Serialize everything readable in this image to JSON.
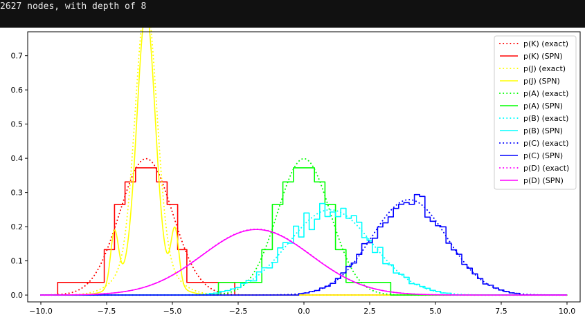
{
  "console": {
    "output_line": "2627 nodes, with depth of 8"
  },
  "chart_data": {
    "type": "line",
    "title": "",
    "xlabel": "",
    "ylabel": "",
    "xlim": [
      -10.5,
      10.5
    ],
    "ylim": [
      -0.02,
      0.77
    ],
    "xticks": [
      -10.0,
      -7.5,
      -5.0,
      -2.5,
      0.0,
      2.5,
      5.0,
      7.5,
      10.0
    ],
    "xtick_labels": [
      "−10.0",
      "−7.5",
      "−5.0",
      "−2.5",
      "0.0",
      "2.5",
      "5.0",
      "7.5",
      "10.0"
    ],
    "yticks": [
      0.0,
      0.1,
      0.2,
      0.3,
      0.4,
      0.5,
      0.6,
      0.7
    ],
    "ytick_labels": [
      "0.0",
      "0.1",
      "0.2",
      "0.3",
      "0.4",
      "0.5",
      "0.6",
      "0.7"
    ],
    "grid": false,
    "legend_position": "upper right",
    "x_range": [
      -10,
      10
    ],
    "series": [
      {
        "name": "p(K) (exact)",
        "color": "#ff0000",
        "style": "dotted",
        "kind": "gaussian",
        "mu": -6,
        "sigma": 1.0,
        "scale": 1.0
      },
      {
        "name": "p(K) (SPN)",
        "color": "#ff0000",
        "style": "solid",
        "kind": "step",
        "edges": [
          -9.36,
          -7.59,
          -7.2,
          -6.8,
          -6.4,
          -5.6,
          -5.2,
          -4.8,
          -4.45,
          -2.63
        ],
        "values": [
          0.037,
          0.133,
          0.265,
          0.331,
          0.372,
          0.331,
          0.265,
          0.133,
          0.037
        ]
      },
      {
        "name": "p(J) (exact)",
        "color": "#ffff00",
        "style": "dotted",
        "kind": "mixture",
        "components": [
          {
            "w": 0.75,
            "mu": -6,
            "sigma": 0.4
          },
          {
            "w": 0.25,
            "mu": -6,
            "sigma": 0.9
          }
        ]
      },
      {
        "name": "p(J) (SPN)",
        "color": "#ffff00",
        "style": "solid",
        "kind": "mixture",
        "components": [
          {
            "w": 0.63,
            "mu": -6,
            "sigma": 0.34
          },
          {
            "w": 0.06,
            "mu": -7.2,
            "sigma": 0.15
          },
          {
            "w": 0.06,
            "mu": -4.9,
            "sigma": 0.15
          },
          {
            "w": 0.18,
            "mu": -6,
            "sigma": 0.8
          }
        ]
      },
      {
        "name": "p(A) (exact)",
        "color": "#00ff00",
        "style": "dotted",
        "kind": "gaussian",
        "mu": 0,
        "sigma": 1.0,
        "scale": 1.0
      },
      {
        "name": "p(A) (SPN)",
        "color": "#00ff00",
        "style": "solid",
        "kind": "step",
        "edges": [
          -3.25,
          -1.6,
          -1.2,
          -0.8,
          -0.4,
          0.4,
          0.8,
          1.2,
          1.6,
          3.3
        ],
        "values": [
          0.037,
          0.133,
          0.265,
          0.331,
          0.372,
          0.331,
          0.265,
          0.133,
          0.037
        ]
      },
      {
        "name": "p(B) (exact)",
        "color": "#00ffff",
        "style": "dotted",
        "kind": "gaussian",
        "mu": 1.0,
        "sigma": 1.6,
        "scale": 1.0
      },
      {
        "name": "p(B) (SPN)",
        "color": "#00ffff",
        "style": "solid",
        "kind": "noisy_step",
        "mu": 1.0,
        "sigma": 1.6,
        "step": 0.2,
        "noise": 0.04
      },
      {
        "name": "p(C) (exact)",
        "color": "#0000ff",
        "style": "dotted",
        "kind": "gaussian",
        "mu": 4.0,
        "sigma": 1.43,
        "scale": 1.0
      },
      {
        "name": "p(C) (SPN)",
        "color": "#0000ff",
        "style": "solid",
        "kind": "noisy_step",
        "mu": 4.0,
        "sigma": 1.43,
        "step": 0.2,
        "noise": 0.025
      },
      {
        "name": "p(D) (exact)",
        "color": "#ff00ff",
        "style": "dotted",
        "kind": "gaussian",
        "mu": -1.8,
        "sigma": 2.07,
        "scale": 1.0
      },
      {
        "name": "p(D) (SPN)",
        "color": "#ff00ff",
        "style": "solid",
        "kind": "gaussian",
        "mu": -1.8,
        "sigma": 2.07,
        "scale": 0.995
      }
    ]
  }
}
